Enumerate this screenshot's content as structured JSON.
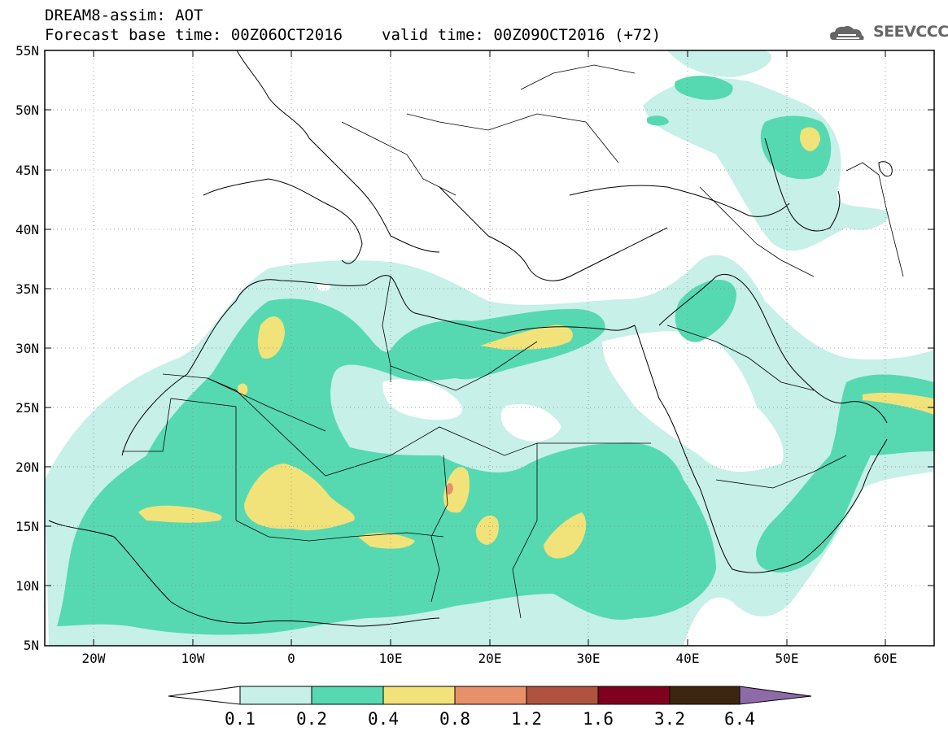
{
  "title": {
    "line1": "DREAM8-assim: AOT",
    "line2_base": "Forecast base time: 00Z06OCT2016",
    "line2_valid": "valid time: 00Z09OCT2016 (+72)"
  },
  "logo": {
    "text": "SEEVCCC",
    "icon": "cloud-logo-icon"
  },
  "map": {
    "lat_labels": [
      "55N",
      "50N",
      "45N",
      "40N",
      "35N",
      "30N",
      "25N",
      "20N",
      "15N",
      "10N",
      "5N"
    ],
    "lon_labels": [
      "20W",
      "10W",
      "0",
      "10E",
      "20E",
      "30E",
      "40E",
      "50E",
      "60E"
    ],
    "grid": "dotted"
  },
  "colorbar": {
    "levels": [
      "0.1",
      "0.2",
      "0.4",
      "0.8",
      "1.2",
      "1.6",
      "3.2",
      "6.4"
    ],
    "colors": [
      "#ffffff",
      "#c6f0e8",
      "#56d9b1",
      "#f2e27a",
      "#e8906a",
      "#b0533e",
      "#800020",
      "#3d2611",
      "#8e6aa8"
    ]
  }
}
